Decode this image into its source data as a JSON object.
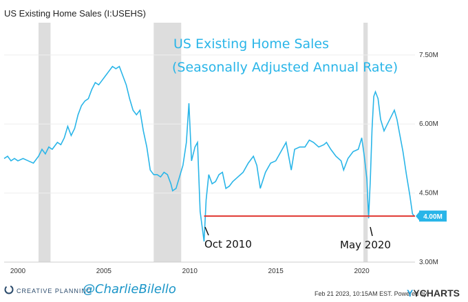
{
  "header": {
    "title": "US Existing Home Sales (I:USEHS)"
  },
  "overlay": {
    "line1": "US Existing Home Sales",
    "line2": "(Seasonally Adjusted Annual Rate)",
    "annotation_oct": "Oct 2010",
    "annotation_may": "May 2020"
  },
  "footer": {
    "brand": "CREATIVE PLANNING",
    "handle": "@CharlieBilello",
    "timestamp": "Feb 21 2023, 10:15AM EST.  Powered by",
    "ycharts": "YCHARTS"
  },
  "colors": {
    "line": "#29b5e8",
    "reference": "#e0342e",
    "recession": "#dddddd",
    "label_bg": "#29b5e8"
  },
  "chart_data": {
    "type": "line",
    "title": "US Existing Home Sales (I:USEHS)",
    "xlim": [
      1999.2,
      2023.1
    ],
    "ylim": [
      3.0,
      8.2
    ],
    "x_ticks": [
      2000,
      2005,
      2010,
      2015,
      2020
    ],
    "x_tick_labels": [
      "2000",
      "2005",
      "2010",
      "2015",
      "2020"
    ],
    "y_ticks": [
      3.0,
      4.5,
      6.0,
      7.5
    ],
    "y_tick_labels": [
      "3.00M",
      "4.50M",
      "6.00M",
      "7.50M"
    ],
    "last_value_label": "4.00M",
    "last_value": 4.0,
    "reference_line": {
      "y": 4.0,
      "x_start": 2010.83,
      "x_end": 2023.1
    },
    "recessions": [
      [
        2001.2,
        2001.9
      ],
      [
        2007.9,
        2009.5
      ],
      [
        2020.1,
        2020.35
      ]
    ],
    "series": [
      {
        "points": [
          [
            1999.2,
            5.25
          ],
          [
            1999.4,
            5.3
          ],
          [
            1999.6,
            5.2
          ],
          [
            1999.8,
            5.25
          ],
          [
            2000.0,
            5.2
          ],
          [
            2000.3,
            5.25
          ],
          [
            2000.6,
            5.2
          ],
          [
            2000.9,
            5.15
          ],
          [
            2001.2,
            5.3
          ],
          [
            2001.4,
            5.45
          ],
          [
            2001.6,
            5.35
          ],
          [
            2001.8,
            5.5
          ],
          [
            2002.0,
            5.45
          ],
          [
            2002.3,
            5.6
          ],
          [
            2002.5,
            5.55
          ],
          [
            2002.7,
            5.7
          ],
          [
            2002.9,
            5.95
          ],
          [
            2003.1,
            5.75
          ],
          [
            2003.3,
            5.9
          ],
          [
            2003.5,
            6.2
          ],
          [
            2003.7,
            6.4
          ],
          [
            2003.9,
            6.5
          ],
          [
            2004.1,
            6.55
          ],
          [
            2004.3,
            6.75
          ],
          [
            2004.5,
            6.9
          ],
          [
            2004.7,
            6.85
          ],
          [
            2004.9,
            6.95
          ],
          [
            2005.1,
            7.05
          ],
          [
            2005.3,
            7.15
          ],
          [
            2005.5,
            7.25
          ],
          [
            2005.7,
            7.2
          ],
          [
            2005.9,
            7.25
          ],
          [
            2006.1,
            7.05
          ],
          [
            2006.3,
            6.85
          ],
          [
            2006.5,
            6.55
          ],
          [
            2006.7,
            6.3
          ],
          [
            2006.9,
            6.2
          ],
          [
            2007.1,
            6.3
          ],
          [
            2007.3,
            5.85
          ],
          [
            2007.5,
            5.5
          ],
          [
            2007.7,
            5.0
          ],
          [
            2007.9,
            4.9
          ],
          [
            2008.1,
            4.9
          ],
          [
            2008.3,
            4.85
          ],
          [
            2008.5,
            4.95
          ],
          [
            2008.7,
            4.9
          ],
          [
            2008.9,
            4.7
          ],
          [
            2009.0,
            4.55
          ],
          [
            2009.2,
            4.6
          ],
          [
            2009.4,
            4.85
          ],
          [
            2009.6,
            5.1
          ],
          [
            2009.8,
            5.6
          ],
          [
            2009.95,
            6.45
          ],
          [
            2010.1,
            5.2
          ],
          [
            2010.3,
            5.5
          ],
          [
            2010.45,
            5.6
          ],
          [
            2010.6,
            4.1
          ],
          [
            2010.83,
            3.45
          ],
          [
            2010.95,
            4.35
          ],
          [
            2011.1,
            4.9
          ],
          [
            2011.3,
            4.7
          ],
          [
            2011.5,
            4.75
          ],
          [
            2011.7,
            4.9
          ],
          [
            2011.9,
            4.95
          ],
          [
            2012.1,
            4.6
          ],
          [
            2012.3,
            4.65
          ],
          [
            2012.5,
            4.75
          ],
          [
            2012.8,
            4.85
          ],
          [
            2013.1,
            4.95
          ],
          [
            2013.4,
            5.15
          ],
          [
            2013.7,
            5.3
          ],
          [
            2013.9,
            5.1
          ],
          [
            2014.1,
            4.6
          ],
          [
            2014.4,
            4.95
          ],
          [
            2014.7,
            5.15
          ],
          [
            2015.0,
            5.2
          ],
          [
            2015.3,
            5.4
          ],
          [
            2015.6,
            5.6
          ],
          [
            2015.9,
            5.0
          ],
          [
            2016.1,
            5.45
          ],
          [
            2016.4,
            5.5
          ],
          [
            2016.7,
            5.5
          ],
          [
            2016.95,
            5.65
          ],
          [
            2017.2,
            5.6
          ],
          [
            2017.5,
            5.5
          ],
          [
            2017.8,
            5.55
          ],
          [
            2017.95,
            5.6
          ],
          [
            2018.2,
            5.45
          ],
          [
            2018.5,
            5.3
          ],
          [
            2018.8,
            5.2
          ],
          [
            2018.95,
            5.0
          ],
          [
            2019.2,
            5.25
          ],
          [
            2019.5,
            5.4
          ],
          [
            2019.8,
            5.45
          ],
          [
            2020.0,
            5.7
          ],
          [
            2020.15,
            5.3
          ],
          [
            2020.3,
            4.8
          ],
          [
            2020.4,
            3.95
          ],
          [
            2020.5,
            4.8
          ],
          [
            2020.6,
            5.9
          ],
          [
            2020.7,
            6.6
          ],
          [
            2020.8,
            6.7
          ],
          [
            2020.95,
            6.55
          ],
          [
            2021.1,
            6.1
          ],
          [
            2021.3,
            5.85
          ],
          [
            2021.5,
            6.0
          ],
          [
            2021.7,
            6.15
          ],
          [
            2021.9,
            6.3
          ],
          [
            2022.05,
            6.1
          ],
          [
            2022.2,
            5.8
          ],
          [
            2022.4,
            5.4
          ],
          [
            2022.6,
            4.9
          ],
          [
            2022.8,
            4.45
          ],
          [
            2022.95,
            4.05
          ],
          [
            2023.05,
            4.0
          ]
        ]
      }
    ]
  }
}
